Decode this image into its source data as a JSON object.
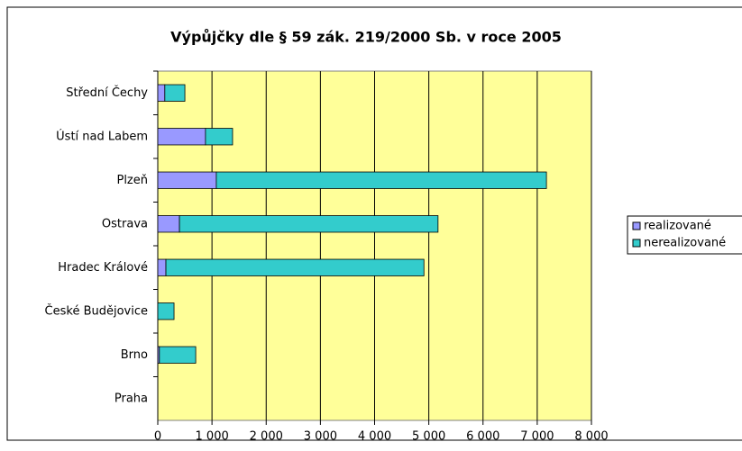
{
  "chart_data": {
    "type": "bar",
    "orientation": "horizontal",
    "stacked": true,
    "title": "Výpůjčky dle § 59 zák. 219/2000 Sb. v roce 2005",
    "categories": [
      "Střední Čechy",
      "Ústí nad Labem",
      "Plzeň",
      "Ostrava",
      "Hradec Králové",
      "České Budějovice",
      "Brno",
      "Praha"
    ],
    "series": [
      {
        "name": "realizované",
        "color": "#9999ff",
        "values": [
          130,
          880,
          1080,
          400,
          150,
          0,
          30,
          0
        ]
      },
      {
        "name": "nerealizované",
        "color": "#33cccc",
        "values": [
          370,
          500,
          6090,
          4770,
          4760,
          300,
          670,
          0
        ]
      }
    ],
    "xlim": [
      0,
      8000
    ],
    "xticks": [
      0,
      {
        "value": 1000,
        "label": "1 000"
      },
      {
        "value": 2000,
        "label": "2 000"
      },
      {
        "value": 3000,
        "label": "3 000"
      },
      {
        "value": 4000,
        "label": "4 000"
      },
      {
        "value": 5000,
        "label": "5 000"
      },
      {
        "value": 6000,
        "label": "6 000"
      },
      {
        "value": 7000,
        "label": "7 000"
      },
      {
        "value": 8000,
        "label": "8 000"
      }
    ],
    "grid": true,
    "legend": "right",
    "plot_background": "#ffff99"
  }
}
